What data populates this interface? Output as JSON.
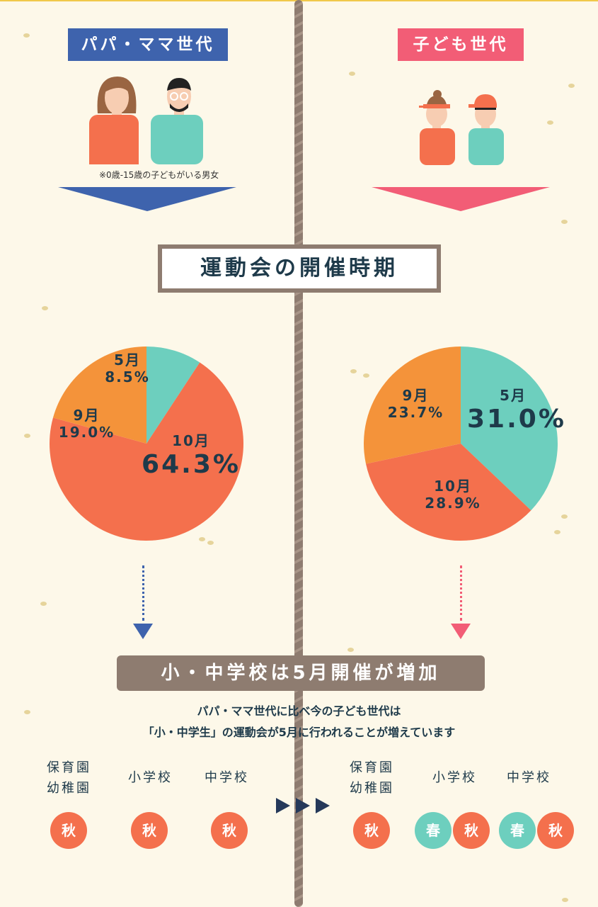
{
  "header": {
    "parent_generation": "パパ・ママ世代",
    "child_generation": "子ども世代",
    "parent_note": "※0歳-15歳の子どもがいる男女"
  },
  "title": "運動会の開催時期",
  "colors": {
    "parent": "#3e63ad",
    "child": "#f25d76",
    "may": "#6dcfbe",
    "september": "#f4933a",
    "october": "#f4704d",
    "frame": "#8e7c70"
  },
  "chart_data": [
    {
      "type": "pie",
      "group": "パパ・ママ世代",
      "slices": [
        {
          "label": "5月",
          "value": 8.5,
          "display": "8.5%"
        },
        {
          "label": "10月",
          "value": 64.3,
          "display": "64.3%"
        },
        {
          "label": "9月",
          "value": 19.0,
          "display": "19.0%"
        }
      ]
    },
    {
      "type": "pie",
      "group": "子ども世代",
      "slices": [
        {
          "label": "5月",
          "value": 31.0,
          "display": "31.0%"
        },
        {
          "label": "10月",
          "value": 28.9,
          "display": "28.9%"
        },
        {
          "label": "9月",
          "value": 23.7,
          "display": "23.7%"
        }
      ]
    }
  ],
  "conclusion": {
    "banner": "小・中学校は5月開催が増加",
    "line1": "パパ・ママ世代に比べ今の子ども世代は",
    "line2": "「小・中学生」の運動会が5月に行われることが増えています"
  },
  "comparison": {
    "parent": [
      {
        "school_line1": "保育園",
        "school_line2": "幼稚園",
        "seasons": [
          "秋"
        ]
      },
      {
        "school_line1": "小学校",
        "school_line2": "",
        "seasons": [
          "秋"
        ]
      },
      {
        "school_line1": "中学校",
        "school_line2": "",
        "seasons": [
          "秋"
        ]
      }
    ],
    "child": [
      {
        "school_line1": "保育園",
        "school_line2": "幼稚園",
        "seasons": [
          "秋"
        ]
      },
      {
        "school_line1": "小学校",
        "school_line2": "",
        "seasons": [
          "春",
          "秋"
        ]
      },
      {
        "school_line1": "中学校",
        "school_line2": "",
        "seasons": [
          "春",
          "秋"
        ]
      }
    ]
  }
}
